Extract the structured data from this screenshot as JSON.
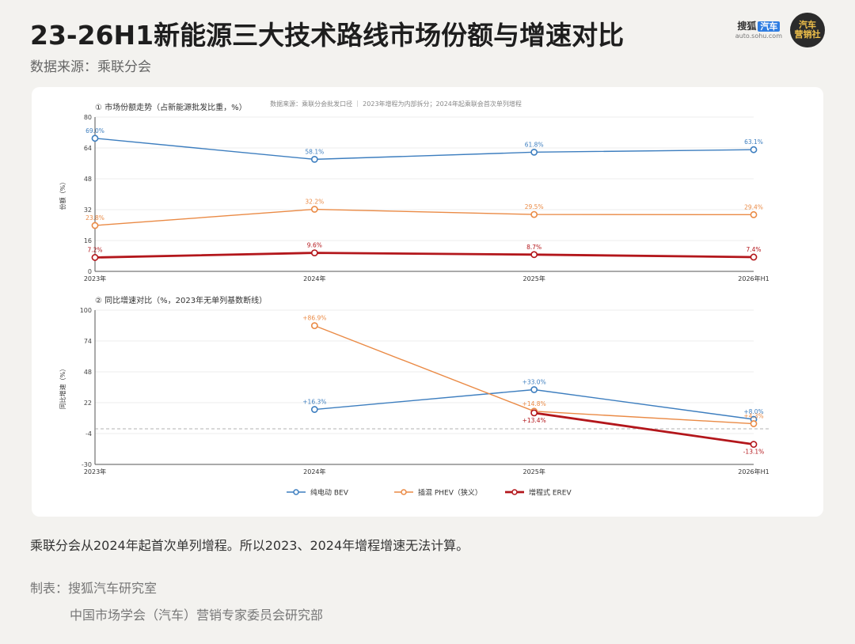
{
  "header": {
    "title": "23-26H1新能源三大技术路线市场份额与增速对比",
    "source": "数据来源：乘联分会",
    "logo_brand": "搜狐",
    "logo_tag": "汽车",
    "logo_url": "auto.sohu.com",
    "logo_badge_line1": "汽车",
    "logo_badge_line2": "营销社"
  },
  "chart_note": "数据来源：乘联分会批发口径 ｜ 2023年增程为内部拆分；2024年起乘联会首次单列增程",
  "footer": {
    "note": "乘联分会从2024年起首次单列增程。所以2023、2024年增程增速无法计算。",
    "credit_line1": "制表：搜狐汽车研究室",
    "credit_line2": "中国市场学会（汽车）营销专家委员会研究部"
  },
  "colors": {
    "bev": "#3d7ebf",
    "phev": "#ea8a45",
    "erev": "#b3161b"
  },
  "chart_data": [
    {
      "type": "line",
      "title": "① 市场份额走势（占新能源批发比重，%）",
      "ylabel": "份额（%）",
      "xlabel": "",
      "categories": [
        "2023年",
        "2024年",
        "2025年",
        "2026年H1"
      ],
      "ylim": [
        0,
        80
      ],
      "yticks": [
        0,
        16,
        32,
        48,
        64,
        80
      ],
      "grid": true,
      "series": [
        {
          "name": "纯电动 BEV",
          "key": "bev",
          "values": [
            69.0,
            58.1,
            61.8,
            63.1
          ],
          "labels": [
            "69.0%",
            "58.1%",
            "61.8%",
            "63.1%"
          ]
        },
        {
          "name": "插混 PHEV（狭义）",
          "key": "phev",
          "values": [
            23.8,
            32.2,
            29.5,
            29.4
          ],
          "labels": [
            "23.8%",
            "32.2%",
            "29.5%",
            "29.4%"
          ]
        },
        {
          "name": "增程式 EREV",
          "key": "erev",
          "values": [
            7.2,
            9.6,
            8.7,
            7.4
          ],
          "labels": [
            "7.2%",
            "9.6%",
            "8.7%",
            "7.4%"
          ]
        }
      ]
    },
    {
      "type": "line",
      "title": "② 同比增速对比（%，2023年无单列基数断线）",
      "ylabel": "同比增速（%）",
      "xlabel": "",
      "categories": [
        "2023年",
        "2024年",
        "2025年",
        "2026年H1"
      ],
      "ylim": [
        -30,
        100
      ],
      "yticks": [
        -30,
        -4,
        22,
        48,
        74,
        100
      ],
      "zero_line": true,
      "grid": true,
      "series": [
        {
          "name": "纯电动 BEV",
          "key": "bev",
          "values": [
            null,
            16.3,
            33.0,
            8.0
          ],
          "labels": [
            null,
            "+16.3%",
            "+33.0%",
            "+8.0%"
          ]
        },
        {
          "name": "插混 PHEV（狭义）",
          "key": "phev",
          "values": [
            null,
            86.9,
            14.8,
            4.3
          ],
          "labels": [
            null,
            "+86.9%",
            "+14.8%",
            "+4.3%"
          ]
        },
        {
          "name": "增程式 EREV",
          "key": "erev",
          "values": [
            null,
            null,
            13.4,
            -13.1
          ],
          "labels": [
            null,
            null,
            "+13.4%",
            "-13.1%"
          ]
        }
      ]
    }
  ],
  "legend": [
    {
      "key": "bev",
      "label": "纯电动 BEV"
    },
    {
      "key": "phev",
      "label": "插混 PHEV（狭义）"
    },
    {
      "key": "erev",
      "label": "增程式 EREV"
    }
  ],
  "legend_position": "bottom"
}
